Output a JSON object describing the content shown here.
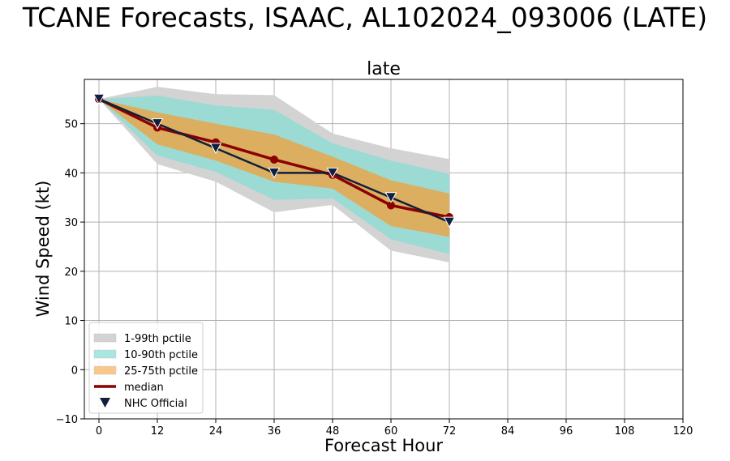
{
  "figure_title": "TCANE Forecasts, ISAAC, AL102024_093006 (LATE)",
  "colors": {
    "band_1_99": "#d3d3d3",
    "band_10_90": "#9bdbd4",
    "band_25_75": "#dcae60",
    "median": "#8b0000",
    "nhc": "#0f1f3d",
    "grid": "#b0b0b0",
    "legend_1_99": "#d3d3d3",
    "legend_10_90": "#a8e6df",
    "legend_25_75": "#f8c88a"
  },
  "chart_data": {
    "type": "line",
    "title": "late",
    "xlabel": "Forecast Hour",
    "ylabel": "Wind Speed (kt)",
    "xlim": [
      -3,
      120
    ],
    "ylim": [
      -10,
      59
    ],
    "xticks": [
      0,
      12,
      24,
      36,
      48,
      60,
      72,
      84,
      96,
      108,
      120
    ],
    "yticks": [
      -10,
      0,
      10,
      20,
      30,
      40,
      50
    ],
    "grid": true,
    "legend_position": "lower-left",
    "x": [
      0,
      12,
      24,
      36,
      48,
      60,
      72
    ],
    "bands": [
      {
        "name": "1-99th pctile",
        "lower": [
          55,
          41.8,
          38.2,
          32,
          33.5,
          24.2,
          21.8
        ],
        "upper": [
          55,
          57.5,
          56,
          55.8,
          48,
          45,
          42.8
        ]
      },
      {
        "name": "10-90th pctile",
        "lower": [
          55,
          43.5,
          40.2,
          34.5,
          34.8,
          26.5,
          23.5
        ],
        "upper": [
          55,
          55.7,
          53.7,
          52.8,
          46,
          42.5,
          39.8
        ]
      },
      {
        "name": "25-75th pctile",
        "lower": [
          55,
          45.8,
          42.5,
          38.2,
          36.8,
          29.2,
          27
        ],
        "upper": [
          55,
          52.3,
          50,
          47.8,
          43.3,
          38.5,
          35.8
        ]
      }
    ],
    "series": [
      {
        "name": "median",
        "x": [
          0,
          12,
          24,
          36,
          48,
          60,
          72
        ],
        "values": [
          55,
          49.2,
          46.2,
          42.7,
          39.6,
          33.4,
          31
        ]
      },
      {
        "name": "NHC Official",
        "x": [
          0,
          12,
          24,
          36,
          48,
          60,
          72
        ],
        "values": [
          55,
          50,
          45,
          40,
          40,
          35,
          30
        ]
      }
    ],
    "legend": [
      "1-99th pctile",
      "10-90th pctile",
      "25-75th pctile",
      "median",
      "NHC Official"
    ]
  }
}
